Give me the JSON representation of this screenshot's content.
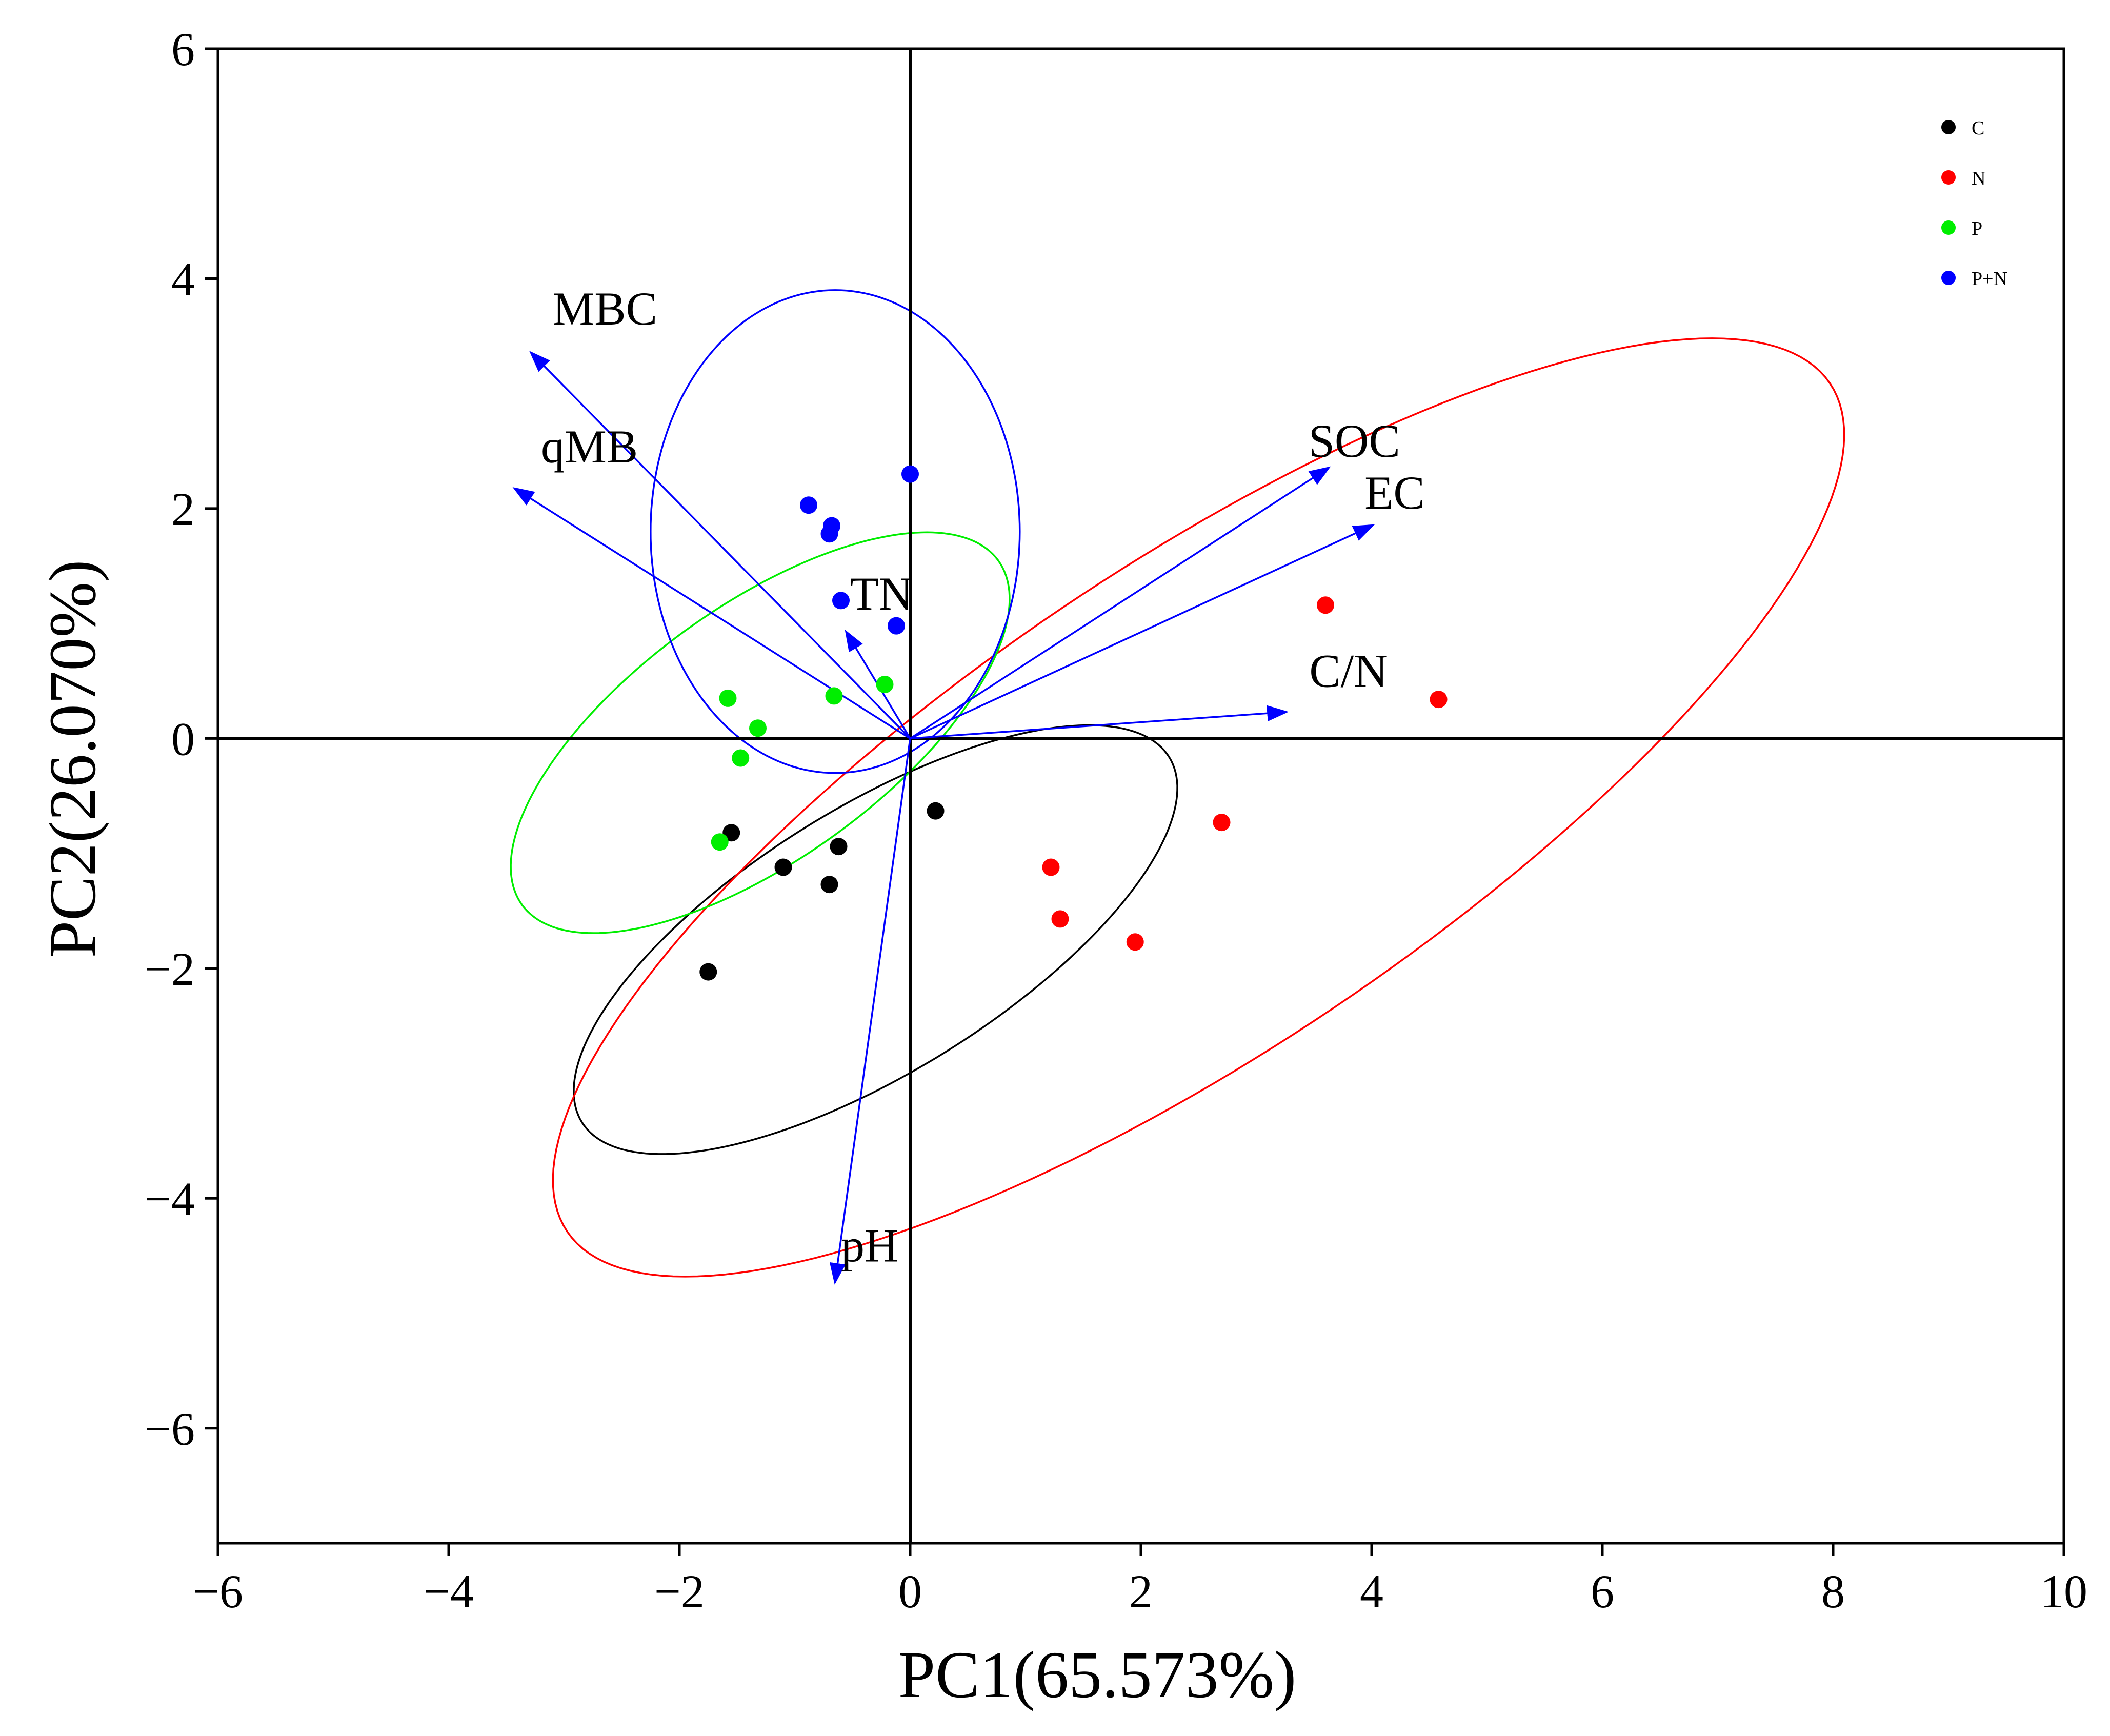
{
  "chart_data": {
    "type": "scatter",
    "subtype": "pca-biplot",
    "title": "",
    "xlabel": "PC1(65.573%)",
    "ylabel": "PC2(26.070%)",
    "xlim": [
      -6,
      10
    ],
    "ylim": [
      -7,
      6
    ],
    "xticks": [
      -6,
      -4,
      -2,
      0,
      2,
      4,
      6,
      8,
      10
    ],
    "yticks": [
      -6,
      -4,
      -2,
      0,
      2,
      4,
      6
    ],
    "xtick_labels": [
      "−6",
      "−4",
      "−2",
      "0",
      "2",
      "4",
      "6",
      "8",
      "10"
    ],
    "ytick_labels": [
      "−6",
      "−4",
      "−2",
      "0",
      "2",
      "4",
      "6"
    ],
    "grid": false,
    "legend_position": "top-right",
    "series": [
      {
        "name": "C",
        "color": "#000000",
        "points": [
          [
            -1.55,
            -0.82
          ],
          [
            -1.1,
            -1.12
          ],
          [
            -0.62,
            -0.94
          ],
          [
            -0.7,
            -1.27
          ],
          [
            0.22,
            -0.63
          ],
          [
            -1.75,
            -2.03
          ]
        ],
        "ellipse": {
          "center": [
            -0.3,
            -1.75
          ],
          "semi_axes": [
            3.0,
            1.15
          ],
          "angle_deg": 32
        }
      },
      {
        "name": "N",
        "color": "#ff0000",
        "points": [
          [
            3.6,
            1.16
          ],
          [
            4.58,
            0.34
          ],
          [
            2.7,
            -0.73
          ],
          [
            1.22,
            -1.12
          ],
          [
            1.3,
            -1.57
          ],
          [
            1.95,
            -1.77
          ]
        ],
        "ellipse": {
          "center": [
            2.5,
            -0.6
          ],
          "semi_axes": [
            6.6,
            2.1
          ],
          "angle_deg": 34
        }
      },
      {
        "name": "P",
        "color": "#00ee00",
        "points": [
          [
            -1.58,
            0.35
          ],
          [
            -1.32,
            0.09
          ],
          [
            -1.47,
            -0.17
          ],
          [
            -0.66,
            0.37
          ],
          [
            -0.22,
            0.47
          ],
          [
            -1.65,
            -0.9
          ]
        ],
        "ellipse": {
          "center": [
            -1.3,
            0.05
          ],
          "semi_axes": [
            2.55,
            1.1
          ],
          "angle_deg": 36
        }
      },
      {
        "name": "P+N",
        "color": "#0000ff",
        "points": [
          [
            -0.88,
            2.03
          ],
          [
            -0.68,
            1.85
          ],
          [
            -0.7,
            1.78
          ],
          [
            0.0,
            2.3
          ],
          [
            -0.6,
            1.2
          ],
          [
            -0.12,
            0.98
          ]
        ],
        "ellipse": {
          "center": [
            -0.65,
            1.8
          ],
          "semi_axes": [
            1.6,
            2.1
          ],
          "angle_deg": 0
        }
      }
    ],
    "loadings": {
      "color": "#0000ff",
      "vectors": [
        {
          "label": "MBC",
          "x": -3.28,
          "y": 3.35
        },
        {
          "label": "qMB",
          "x": -3.42,
          "y": 2.17
        },
        {
          "label": "TN",
          "x": -0.55,
          "y": 0.92
        },
        {
          "label": "SOC",
          "x": 3.62,
          "y": 2.35
        },
        {
          "label": "EC",
          "x": 4.0,
          "y": 1.85
        },
        {
          "label": "C/N",
          "x": 3.25,
          "y": 0.23
        },
        {
          "label": "pH",
          "x": -0.65,
          "y": -4.72
        }
      ]
    }
  }
}
